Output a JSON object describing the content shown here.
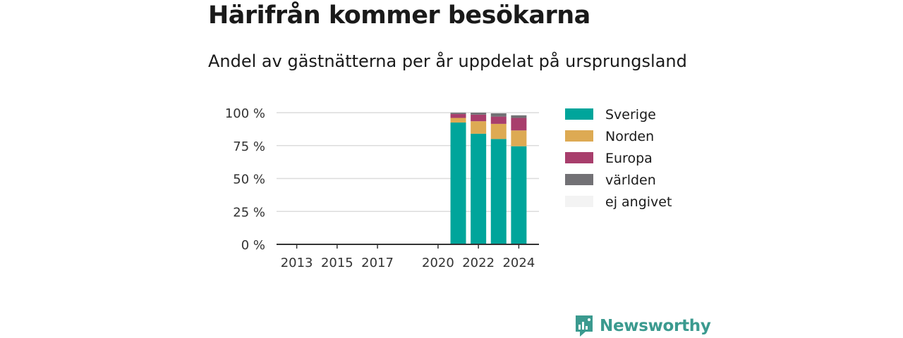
{
  "title": "Härifrån kommer besökarna",
  "subtitle": "Andel av gästnätterna per år uppdelat på ursprungsland",
  "brand": {
    "name": "Newsworthy"
  },
  "chart_data": {
    "type": "bar",
    "stacked": true,
    "x": [
      2021,
      2022,
      2023,
      2024
    ],
    "xlim": [
      2012,
      2025
    ],
    "xticks": [
      "2013",
      "2015",
      "2017",
      "2020",
      "2022",
      "2024"
    ],
    "yticks": [
      "0 %",
      "25 %",
      "50 %",
      "75 %",
      "100 %"
    ],
    "ylim": [
      0,
      100
    ],
    "grid": true,
    "legend_position": "right",
    "series": [
      {
        "name": "Sverige",
        "color": "#00a59b",
        "values": [
          92.5,
          84,
          80,
          74.5
        ]
      },
      {
        "name": "Norden",
        "color": "#ddaa53",
        "values": [
          3.5,
          9.5,
          11.5,
          12
        ]
      },
      {
        "name": "Europa",
        "color": "#a83e6c",
        "values": [
          3,
          5,
          5.5,
          9.5
        ]
      },
      {
        "name": "världen",
        "color": "#727175",
        "values": [
          1,
          1.5,
          2.5,
          2
        ]
      },
      {
        "name": "ej angivet",
        "color": "#f3f3f3",
        "values": [
          0,
          0,
          0,
          0
        ]
      }
    ]
  }
}
